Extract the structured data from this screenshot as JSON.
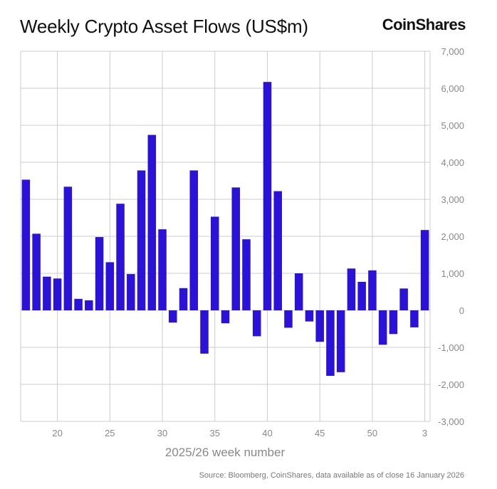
{
  "header": {
    "title": "Weekly Crypto Asset Flows (US$m)",
    "brand": "CoinShares"
  },
  "footer": {
    "source": "Source: Bloomberg, CoinShares, data available as of close 16 January 2026"
  },
  "colors": {
    "bar": "#2b12d8",
    "grid": "#cccccc",
    "axis_text": "#888888"
  },
  "chart_data": {
    "type": "bar",
    "title": "Weekly Crypto Asset Flows (US$m)",
    "xlabel": "2025/26 week number",
    "ylabel": "",
    "ylim": [
      -3000,
      7000
    ],
    "yticks": [
      7000,
      6000,
      5000,
      4000,
      3000,
      2000,
      1000,
      0,
      -1000,
      -2000,
      -3000
    ],
    "ytick_labels": [
      "7,000",
      "6,000",
      "5,000",
      "4,000",
      "3,000",
      "2,000",
      "1,000",
      "0",
      "-1,000",
      "-2,000",
      "-3,000"
    ],
    "xtick_labels": [
      {
        "week": 20,
        "label": "20"
      },
      {
        "week": 25,
        "label": "25"
      },
      {
        "week": 30,
        "label": "30"
      },
      {
        "week": 35,
        "label": "35"
      },
      {
        "week": 40,
        "label": "40"
      },
      {
        "week": 45,
        "label": "45"
      },
      {
        "week": 50,
        "label": "50"
      },
      {
        "week": 55,
        "label": "3"
      }
    ],
    "grid": true,
    "categories": [
      "17",
      "18",
      "19",
      "20",
      "21",
      "22",
      "23",
      "24",
      "25",
      "26",
      "27",
      "28",
      "29",
      "30",
      "31",
      "32",
      "33",
      "34",
      "35",
      "36",
      "37",
      "38",
      "39",
      "40",
      "41",
      "42",
      "43",
      "44",
      "45",
      "46",
      "47",
      "48",
      "49",
      "50",
      "51",
      "52",
      "1",
      "2",
      "3"
    ],
    "values": [
      3530,
      2070,
      910,
      860,
      3340,
      310,
      270,
      1980,
      1300,
      2880,
      980,
      3780,
      4740,
      2190,
      -330,
      600,
      3780,
      -1170,
      2530,
      -350,
      3320,
      1920,
      -700,
      6170,
      3220,
      -470,
      1000,
      -300,
      -850,
      -1770,
      -1670,
      1130,
      770,
      1080,
      -930,
      -640,
      590,
      -460,
      2170
    ]
  }
}
